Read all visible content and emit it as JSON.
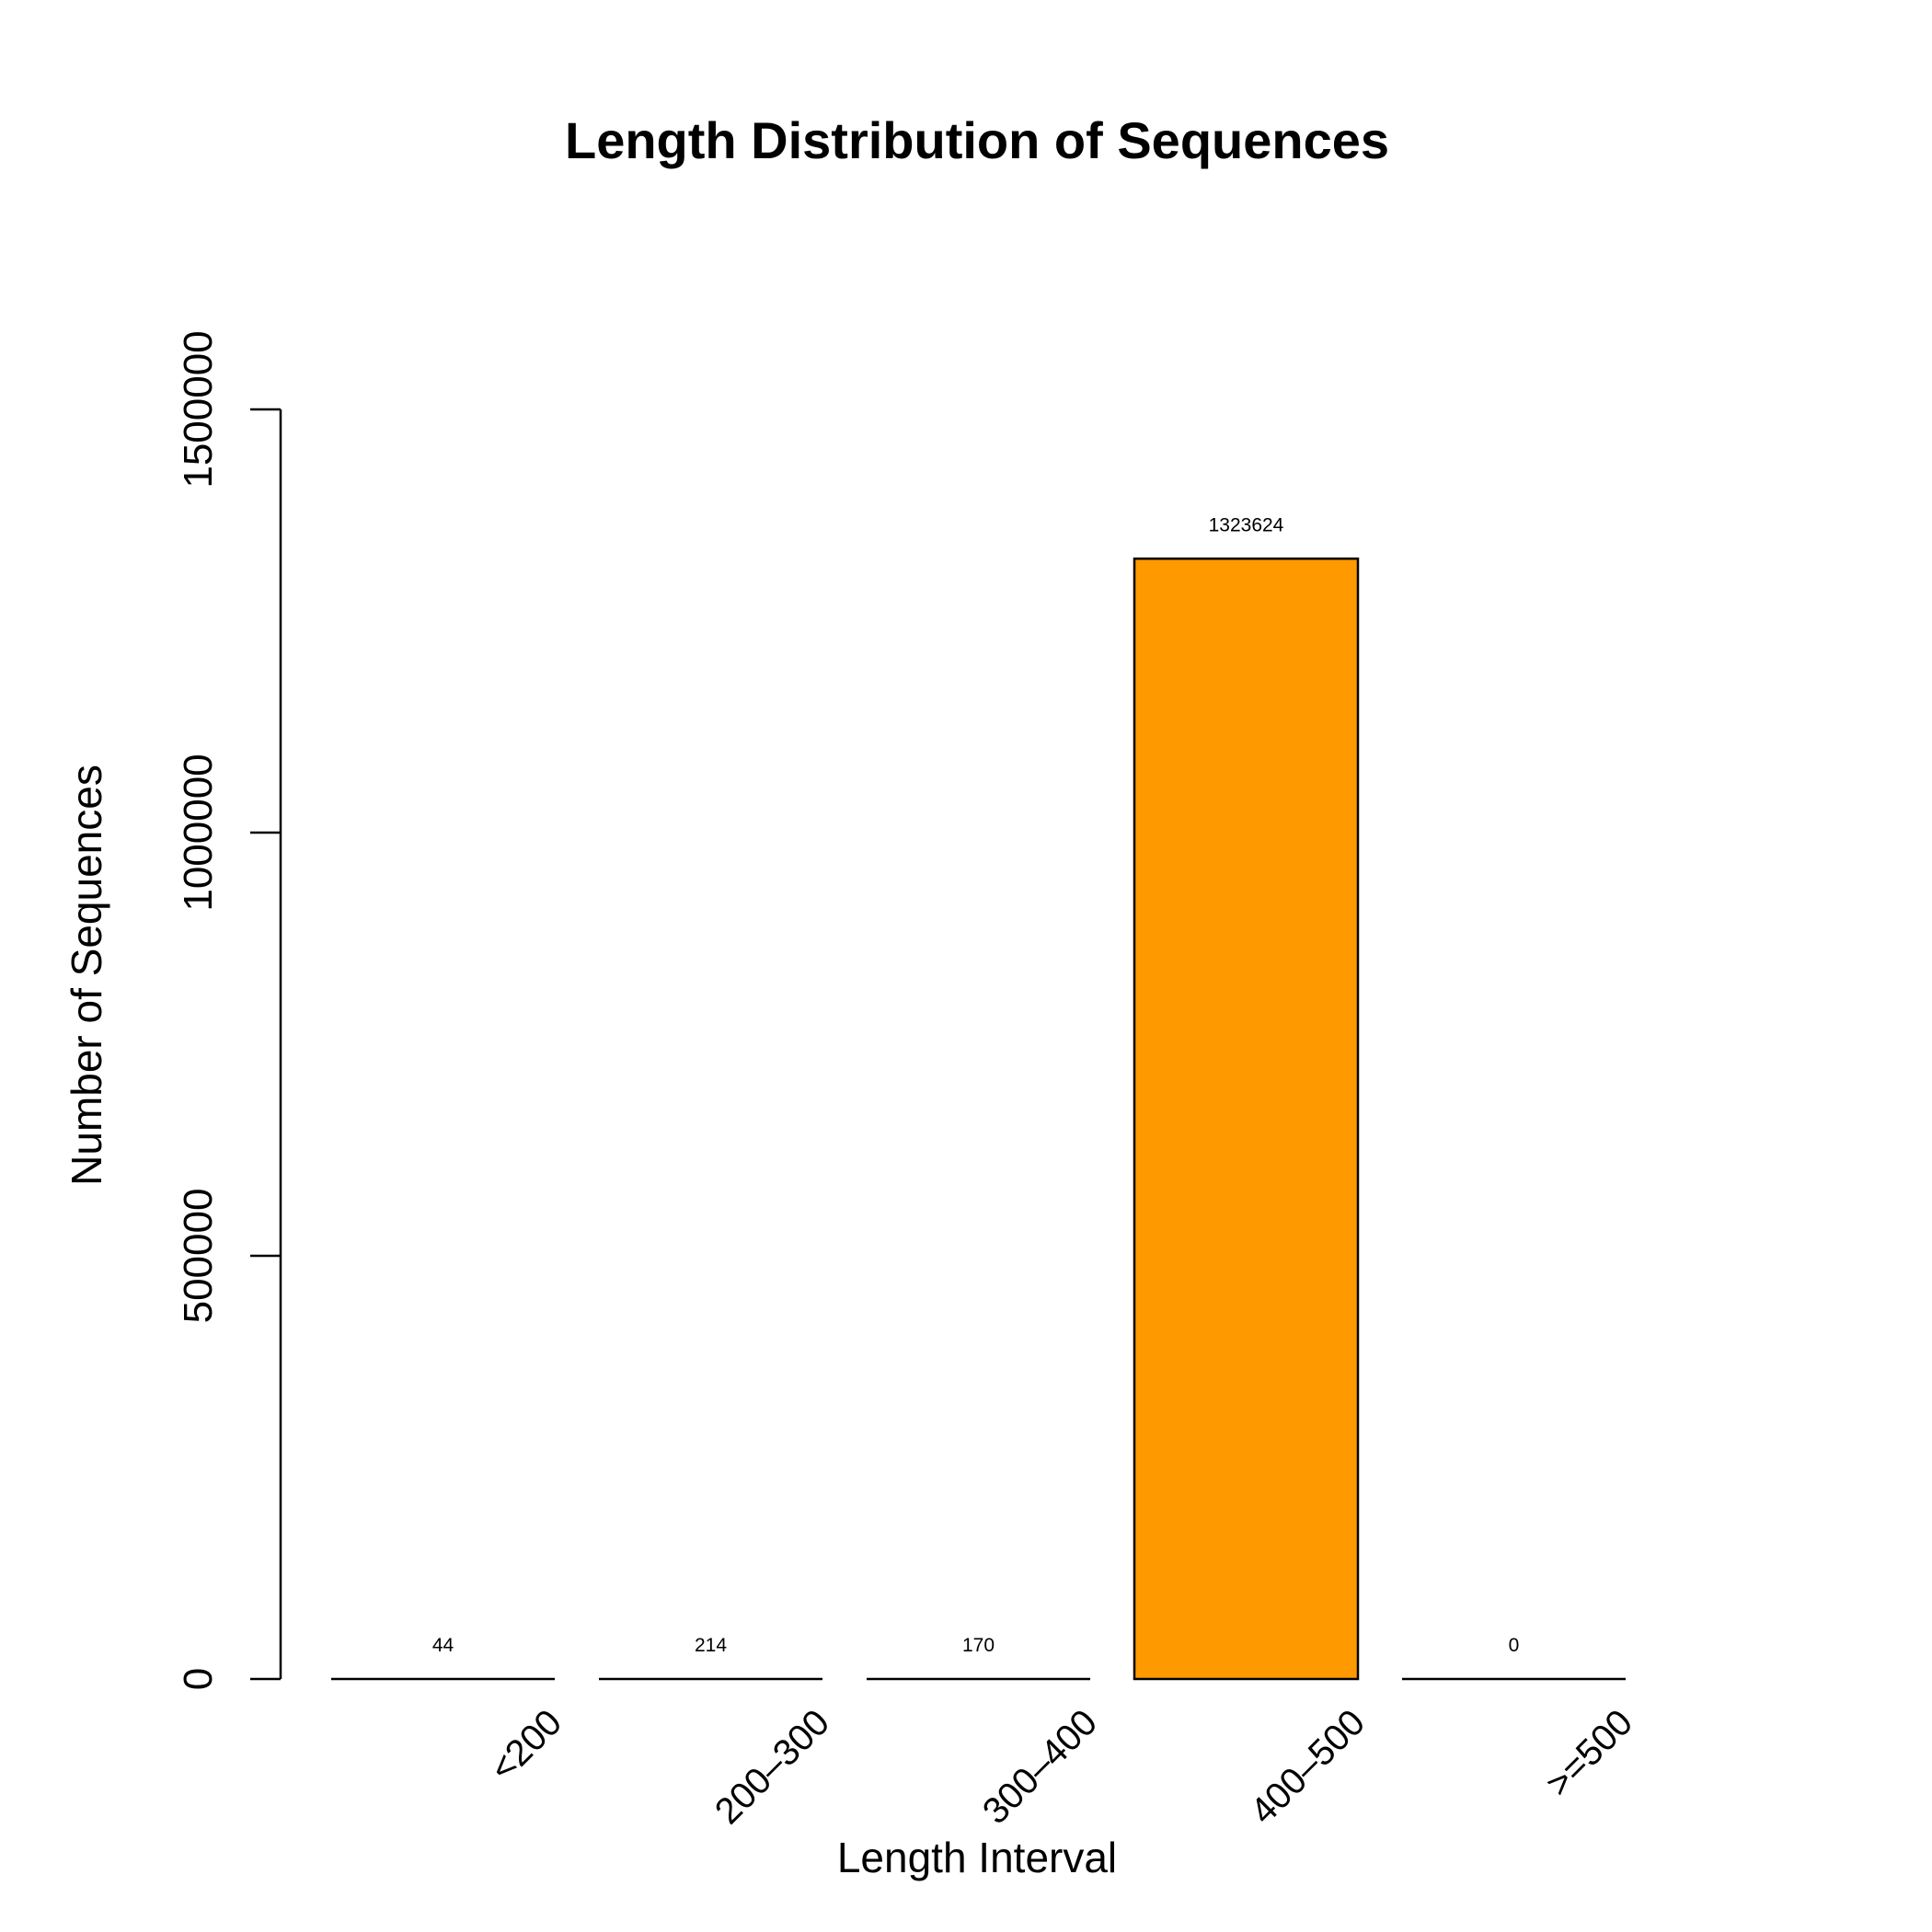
{
  "chart_data": {
    "type": "bar",
    "title": "Length Distribution of Sequences",
    "xlabel": "Length Interval",
    "ylabel": "Number of Sequences",
    "categories": [
      "<200",
      "200–300",
      "300–400",
      "400–500",
      ">=500"
    ],
    "values": [
      44,
      214,
      170,
      1323624,
      0
    ],
    "data_labels": [
      "44",
      "214",
      "170",
      "1323624",
      "0"
    ],
    "ylim": [
      0,
      1500000
    ],
    "yticks": [
      0,
      500000,
      1000000,
      1500000
    ],
    "ytick_labels": [
      "0",
      "500000",
      "1000000",
      "1500000"
    ],
    "bar_color": "#FF9900",
    "edge_color": "#000000",
    "grid": false,
    "legend": "none"
  }
}
